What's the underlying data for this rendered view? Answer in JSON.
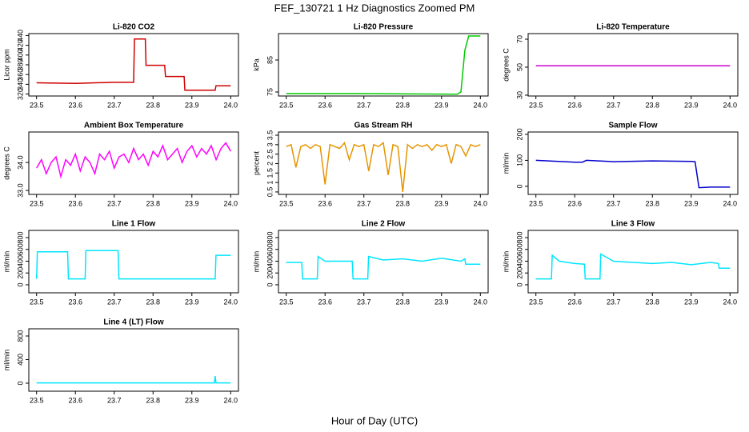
{
  "title": "FEF_130721  1 Hz Diagnostics Zoomed PM",
  "xlabel": "Hour of Day (UTC)",
  "chart_data": [
    {
      "type": "line",
      "title": "Li-820 CO2",
      "ylabel": "Licor ppm",
      "color": "#d00000",
      "x": [
        23.5,
        23.6,
        23.7,
        23.75,
        23.752,
        23.78,
        23.782,
        23.83,
        23.832,
        23.88,
        23.882,
        23.96,
        23.962,
        24.0
      ],
      "values": [
        343,
        342,
        344,
        344,
        433,
        433,
        379,
        379,
        356,
        356,
        328,
        328,
        337,
        337
      ],
      "xlim": [
        23.48,
        24.02
      ],
      "ylim": [
        316,
        444
      ],
      "xticks": [
        23.5,
        23.6,
        23.7,
        23.8,
        23.9,
        {
          "value": 24,
          "label": "24.0"
        }
      ],
      "yticks": [
        320,
        340,
        360,
        380,
        400,
        420,
        440
      ]
    },
    {
      "type": "line",
      "title": "Li-820 Pressure",
      "ylabel": "kPa",
      "color": "#00cc00",
      "x": [
        23.5,
        23.7,
        23.94,
        23.95,
        23.96,
        23.97,
        24.0
      ],
      "values": [
        74.5,
        74.5,
        74.3,
        75,
        88,
        92.5,
        92.5
      ],
      "xlim": [
        23.48,
        24.02
      ],
      "ylim": [
        73.75,
        93.25
      ],
      "xticks": [
        23.5,
        23.6,
        23.7,
        23.8,
        23.9,
        {
          "value": 24,
          "label": "24.0"
        }
      ],
      "yticks": [
        75,
        85
      ]
    },
    {
      "type": "line",
      "title": "Li-820 Temperature",
      "ylabel": "degrees C",
      "color": "#cc00cc",
      "x": [
        23.5,
        24.0
      ],
      "values": [
        51,
        51
      ],
      "xlim": [
        23.48,
        24.02
      ],
      "ylim": [
        29.4,
        74
      ],
      "xticks": [
        23.5,
        23.6,
        23.7,
        23.8,
        23.9,
        {
          "value": 24,
          "label": "24.0"
        }
      ],
      "yticks": [
        30,
        50,
        70
      ]
    },
    {
      "type": "line",
      "title": "Ambient Box Temperature",
      "ylabel": "degrees C",
      "color": "#ff00ff",
      "x": [
        23.5,
        23.5125,
        23.525,
        23.5375,
        23.55,
        23.5625,
        23.575,
        23.5875,
        23.6,
        23.6125,
        23.625,
        23.6375,
        23.65,
        23.6625,
        23.675,
        23.6875,
        23.7,
        23.7125,
        23.725,
        23.7375,
        23.75,
        23.7625,
        23.775,
        23.7875,
        23.8,
        23.8125,
        23.825,
        23.8375,
        23.85,
        23.8625,
        23.875,
        23.8875,
        23.9,
        23.9125,
        23.925,
        23.9375,
        23.95,
        23.9625,
        23.975,
        23.9875,
        24.0
      ],
      "values": [
        33.8,
        34.1,
        33.6,
        34.0,
        34.2,
        33.5,
        34.1,
        33.9,
        34.3,
        33.7,
        34.2,
        34.0,
        33.6,
        34.3,
        34.1,
        34.4,
        33.8,
        34.2,
        34.3,
        34.0,
        34.5,
        34.1,
        34.3,
        33.9,
        34.4,
        34.2,
        34.6,
        34.1,
        34.3,
        34.5,
        34.0,
        34.4,
        34.6,
        34.2,
        34.5,
        34.3,
        34.6,
        34.1,
        34.5,
        34.7,
        34.4
      ],
      "xlim": [
        23.48,
        24.02
      ],
      "ylim": [
        32.86,
        35.09
      ],
      "xticks": [
        23.5,
        23.6,
        23.7,
        23.8,
        23.9,
        {
          "value": 24,
          "label": "24.0"
        }
      ],
      "yticks": [
        {
          "value": 33,
          "label": "33.0"
        },
        {
          "value": 34,
          "label": "34.0"
        }
      ]
    },
    {
      "type": "line",
      "title": "Gas Stream RH",
      "ylabel": "percent",
      "color": "#e69500",
      "x": [
        23.5,
        23.5125,
        23.525,
        23.5375,
        23.55,
        23.5625,
        23.575,
        23.5875,
        23.6,
        23.6125,
        23.625,
        23.6375,
        23.65,
        23.6625,
        23.675,
        23.6875,
        23.7,
        23.7125,
        23.725,
        23.7375,
        23.75,
        23.7625,
        23.775,
        23.7875,
        23.8,
        23.8125,
        23.825,
        23.8375,
        23.85,
        23.8625,
        23.875,
        23.8875,
        23.9,
        23.9125,
        23.925,
        23.9375,
        23.95,
        23.9625,
        23.975,
        23.9875,
        24.0
      ],
      "values": [
        2.9,
        3.0,
        1.8,
        2.9,
        3.0,
        2.8,
        3.0,
        2.9,
        0.9,
        3.0,
        2.9,
        2.8,
        3.1,
        2.2,
        3.0,
        2.9,
        3.0,
        1.6,
        3.0,
        2.9,
        3.1,
        1.4,
        3.0,
        2.9,
        0.5,
        3.0,
        2.8,
        3.0,
        2.9,
        3.0,
        2.7,
        3.0,
        2.9,
        3.0,
        2.0,
        3.0,
        2.9,
        2.4,
        3.0,
        2.9,
        3.0
      ],
      "xlim": [
        23.48,
        24.02
      ],
      "ylim": [
        0.37,
        3.67
      ],
      "xticks": [
        23.5,
        23.6,
        23.7,
        23.8,
        23.9,
        {
          "value": 24,
          "label": "24.0"
        }
      ],
      "yticks": [
        0.5,
        1.0,
        1.5,
        2.0,
        2.5,
        3.0,
        3.5
      ]
    },
    {
      "type": "line",
      "title": "Sample Flow",
      "ylabel": "ml/min",
      "color": "#0000cc",
      "x": [
        23.5,
        23.6,
        23.62,
        23.63,
        23.7,
        23.8,
        23.9,
        23.91,
        23.92,
        23.95,
        24.0
      ],
      "values": [
        100,
        93,
        93,
        100,
        95,
        98,
        96,
        95,
        -5,
        -3,
        -3
      ],
      "xlim": [
        23.48,
        24.02
      ],
      "ylim": [
        -31,
        209
      ],
      "xticks": [
        23.5,
        23.6,
        23.7,
        23.8,
        23.9,
        {
          "value": 24,
          "label": "24.0"
        }
      ],
      "yticks": [
        0,
        100,
        200
      ]
    },
    {
      "type": "line",
      "title": "Line 1 Flow",
      "ylabel": "ml/min",
      "color": "#00e5ff",
      "x": [
        23.5,
        23.502,
        23.58,
        23.582,
        23.625,
        23.627,
        23.71,
        23.712,
        23.96,
        23.962,
        24.0
      ],
      "values": [
        100,
        560,
        560,
        100,
        100,
        580,
        580,
        100,
        100,
        500,
        500
      ],
      "xlim": [
        23.48,
        24.02
      ],
      "ylim": [
        -136,
        922
      ],
      "xticks": [
        23.5,
        23.6,
        23.7,
        23.8,
        23.9,
        {
          "value": 24,
          "label": "24.0"
        }
      ],
      "yticks": [
        0,
        200,
        400,
        600,
        800
      ]
    },
    {
      "type": "line",
      "title": "Line 2 Flow",
      "ylabel": "ml/min",
      "color": "#00e5ff",
      "x": [
        23.5,
        23.54,
        23.542,
        23.58,
        23.582,
        23.6,
        23.67,
        23.672,
        23.71,
        23.712,
        23.75,
        23.8,
        23.85,
        23.9,
        23.95,
        23.96,
        23.962,
        24.0
      ],
      "values": [
        380,
        380,
        100,
        100,
        480,
        400,
        400,
        100,
        100,
        480,
        420,
        440,
        400,
        450,
        400,
        440,
        350,
        350
      ],
      "xlim": [
        23.48,
        24.02
      ],
      "ylim": [
        -136,
        922
      ],
      "xticks": [
        23.5,
        23.6,
        23.7,
        23.8,
        23.9,
        {
          "value": 24,
          "label": "24.0"
        }
      ],
      "yticks": [
        0,
        200,
        400,
        600,
        800
      ]
    },
    {
      "type": "line",
      "title": "Line 3 Flow",
      "ylabel": "ml/min",
      "color": "#00e5ff",
      "x": [
        23.5,
        23.54,
        23.542,
        23.56,
        23.6,
        23.625,
        23.627,
        23.665,
        23.667,
        23.7,
        23.75,
        23.8,
        23.85,
        23.9,
        23.95,
        23.97,
        23.972,
        24.0
      ],
      "values": [
        100,
        100,
        500,
        400,
        360,
        350,
        100,
        100,
        520,
        400,
        380,
        360,
        380,
        340,
        380,
        360,
        280,
        280
      ],
      "xlim": [
        23.48,
        24.02
      ],
      "ylim": [
        -136,
        922
      ],
      "xticks": [
        23.5,
        23.6,
        23.7,
        23.8,
        23.9,
        {
          "value": 24,
          "label": "24.0"
        }
      ],
      "yticks": [
        0,
        200,
        400,
        600,
        800
      ]
    },
    {
      "type": "line",
      "title": "Line 4 (LT) Flow",
      "ylabel": "ml/min",
      "color": "#00e5ff",
      "x": [
        23.5,
        23.95,
        23.958,
        23.96,
        23.962,
        24.0
      ],
      "values": [
        5,
        5,
        5,
        120,
        5,
        5
      ],
      "xlim": [
        23.48,
        24.02
      ],
      "ylim": [
        -136,
        922
      ],
      "xticks": [
        23.5,
        23.6,
        23.7,
        23.8,
        23.9,
        {
          "value": 24,
          "label": "24.0"
        }
      ],
      "yticks": [
        0,
        400,
        800
      ]
    }
  ]
}
